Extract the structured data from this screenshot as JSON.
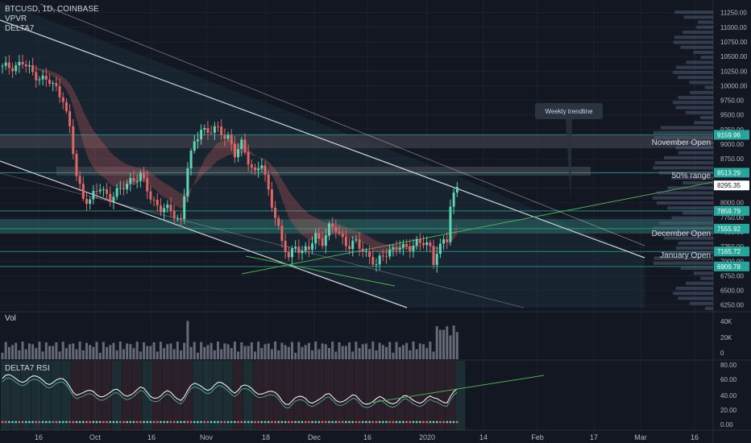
{
  "header": {
    "symbol_line": "BTCUSD, 1D, COINBASE",
    "indicator_1": "VPVR",
    "indicator_2": "DELTA7"
  },
  "volume_pane": {
    "title": "Vol"
  },
  "rsi_pane": {
    "title": "DELTA7 RSI"
  },
  "colors": {
    "background": "#131722",
    "grid": "#1c2230",
    "bull": "#5fd3b4",
    "bear": "#e06666",
    "level_line": "#26a69a",
    "level_band": "#3d3f4a",
    "trendline": "#d0d3db",
    "green_line": "#4caf50"
  },
  "chart_data": [
    {
      "type": "candlestick",
      "pane": "price",
      "ylim": [
        6150,
        11300
      ],
      "y_ticks": [
        "11250.00",
        "11000.00",
        "10750.00",
        "10500.00",
        "10250.00",
        "10000.00",
        "9750.00",
        "9500.00",
        "9250.00",
        "9000.00",
        "8750.00",
        "8500.00",
        "8250.00",
        "8000.00",
        "7750.00",
        "7500.00",
        "7250.00",
        "7000.00",
        "6750.00",
        "6500.00",
        "6250.00"
      ],
      "x_ticks": [
        "16",
        "Oct",
        "16",
        "Nov",
        "18",
        "Dec",
        "16",
        "2020",
        "14",
        "Feb",
        "17",
        "Mar",
        "16"
      ],
      "last_price": "8295.35",
      "price_tags": [
        "9159.96",
        "8513.29",
        "7859.79",
        "7555.92",
        "7165.72",
        "6909.78"
      ],
      "level_labels": [
        "November Open",
        "50% range",
        "December Open",
        "January Open"
      ],
      "annotation": "Weekly trendline",
      "series": [
        {
          "name": "BTCUSD",
          "close_anchors": [
            [
              0,
              10300
            ],
            [
              6,
              10380
            ],
            [
              9,
              10220
            ],
            [
              12,
              10120
            ],
            [
              14,
              10050
            ],
            [
              16,
              9950
            ],
            [
              18,
              9800
            ],
            [
              20,
              9250
            ],
            [
              22,
              8450
            ],
            [
              24,
              8100
            ],
            [
              26,
              8050
            ],
            [
              29,
              8250
            ],
            [
              32,
              8100
            ],
            [
              35,
              8200
            ],
            [
              38,
              8400
            ],
            [
              41,
              8450
            ],
            [
              44,
              8100
            ],
            [
              47,
              7900
            ],
            [
              50,
              7850
            ],
            [
              53,
              7700
            ],
            [
              55,
              8600
            ],
            [
              57,
              9000
            ],
            [
              59,
              9300
            ],
            [
              61,
              9200
            ],
            [
              63,
              9250
            ],
            [
              65,
              9200
            ],
            [
              67,
              9150
            ],
            [
              69,
              8800
            ],
            [
              71,
              9000
            ],
            [
              73,
              8750
            ],
            [
              75,
              8500
            ],
            [
              77,
              8650
            ],
            [
              79,
              8200
            ],
            [
              81,
              7800
            ],
            [
              83,
              7300
            ],
            [
              85,
              7050
            ],
            [
              87,
              7300
            ],
            [
              89,
              7150
            ],
            [
              91,
              7200
            ],
            [
              93,
              7450
            ],
            [
              95,
              7350
            ],
            [
              97,
              7550
            ],
            [
              99,
              7550
            ],
            [
              101,
              7400
            ],
            [
              103,
              7250
            ],
            [
              105,
              7300
            ],
            [
              107,
              7200
            ],
            [
              109,
              7100
            ],
            [
              111,
              6900
            ],
            [
              113,
              7100
            ],
            [
              115,
              7200
            ],
            [
              117,
              7250
            ],
            [
              119,
              7200
            ],
            [
              121,
              7250
            ],
            [
              123,
              7350
            ],
            [
              125,
              7300
            ],
            [
              127,
              7200
            ],
            [
              128,
              7000
            ],
            [
              129,
              7200
            ],
            [
              131,
              7350
            ],
            [
              132,
              7350
            ],
            [
              133,
              7900
            ],
            [
              134,
              8100
            ],
            [
              135,
              8300
            ]
          ]
        }
      ],
      "volume_ticks": [
        "40K",
        "20K",
        "0"
      ],
      "rsi_ticks": [
        "80.00",
        "60.00",
        "40.00",
        "20.00",
        "0.00"
      ]
    }
  ]
}
